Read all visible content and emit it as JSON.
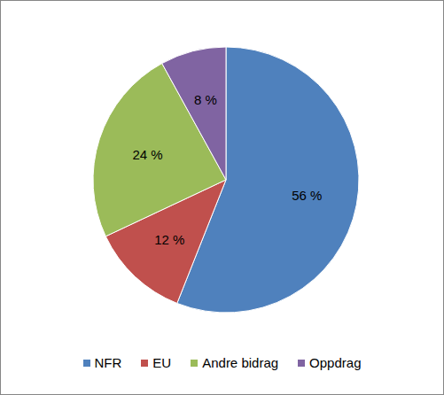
{
  "chart_data": {
    "type": "pie",
    "categories": [
      "NFR",
      "EU",
      "Andre bidrag",
      "Oppdrag"
    ],
    "values": [
      56,
      12,
      24,
      8
    ],
    "value_labels": [
      "56 %",
      "12 %",
      "24 %",
      "8 %"
    ],
    "colors": [
      "#4f81bd",
      "#c0504d",
      "#9bbb59",
      "#8064a2"
    ],
    "data_labels": true,
    "legend": "bottom"
  }
}
